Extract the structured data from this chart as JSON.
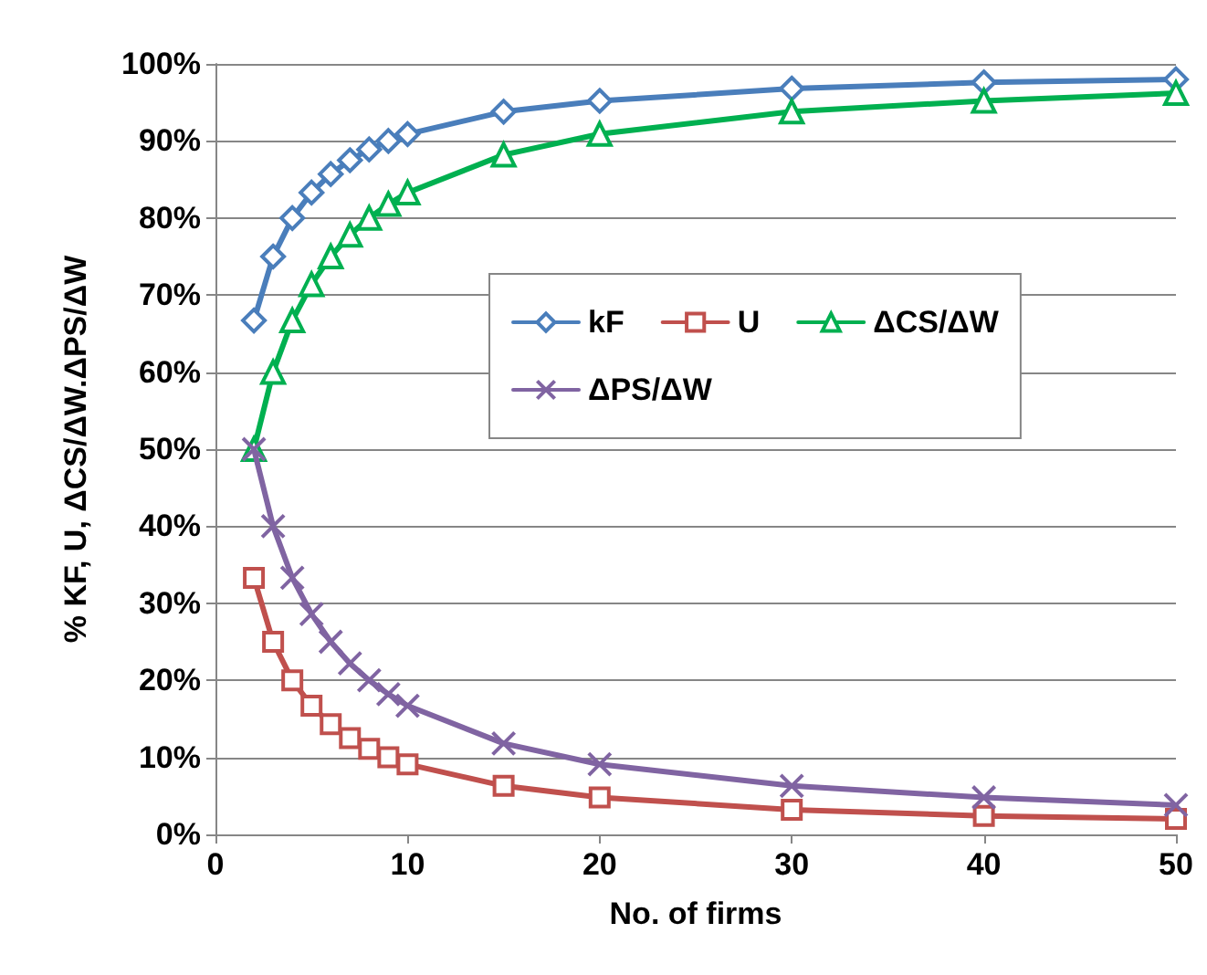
{
  "chart_data": {
    "type": "line",
    "xlabel": "No. of firms",
    "ylabel": "% KF, U, ΔCS/ΔW.ΔPS/ΔW",
    "x": [
      2,
      3,
      4,
      5,
      6,
      7,
      8,
      9,
      10,
      15,
      20,
      30,
      40,
      50
    ],
    "series": [
      {
        "name": "kF",
        "color": "#4a7ebb",
        "marker": "diamond",
        "values": [
          66.7,
          75,
          80,
          83.3,
          85.7,
          87.5,
          88.9,
          90,
          90.9,
          93.8,
          95.2,
          96.8,
          97.6,
          98
        ]
      },
      {
        "name": "U",
        "color": "#c0504d",
        "marker": "square",
        "values": [
          33.3,
          25,
          20,
          16.7,
          14.3,
          12.5,
          11.1,
          10,
          9.1,
          6.3,
          4.8,
          3.2,
          2.4,
          2
        ]
      },
      {
        "name": "ΔCS/ΔW",
        "color": "#00b050",
        "marker": "triangle",
        "values": [
          50,
          60,
          66.7,
          71.4,
          75,
          77.8,
          80,
          81.8,
          83.3,
          88.2,
          90.9,
          93.8,
          95.2,
          96.2
        ]
      },
      {
        "name": "ΔPS/ΔW",
        "color": "#8064a2",
        "marker": "cross",
        "values": [
          50,
          40,
          33.3,
          28.6,
          25,
          22.2,
          20,
          18.2,
          16.7,
          11.8,
          9.1,
          6.3,
          4.8,
          3.8
        ]
      }
    ],
    "xlim": [
      0,
      50
    ],
    "xticks": [
      0,
      10,
      20,
      30,
      40,
      50
    ],
    "ylim": [
      0,
      100
    ],
    "yticks": [
      {
        "value": 0,
        "label": "0%"
      },
      {
        "value": 10,
        "label": "10%"
      },
      {
        "value": 20,
        "label": "20%"
      },
      {
        "value": 30,
        "label": "30%"
      },
      {
        "value": 40,
        "label": "40%"
      },
      {
        "value": 50,
        "label": "50%"
      },
      {
        "value": 60,
        "label": "60%"
      },
      {
        "value": 70,
        "label": "70%"
      },
      {
        "value": 80,
        "label": "80%"
      },
      {
        "value": 90,
        "label": "90%"
      },
      {
        "value": 100,
        "label": "100%"
      }
    ],
    "grid": "y",
    "legend": "right",
    "line_style": "solid"
  }
}
